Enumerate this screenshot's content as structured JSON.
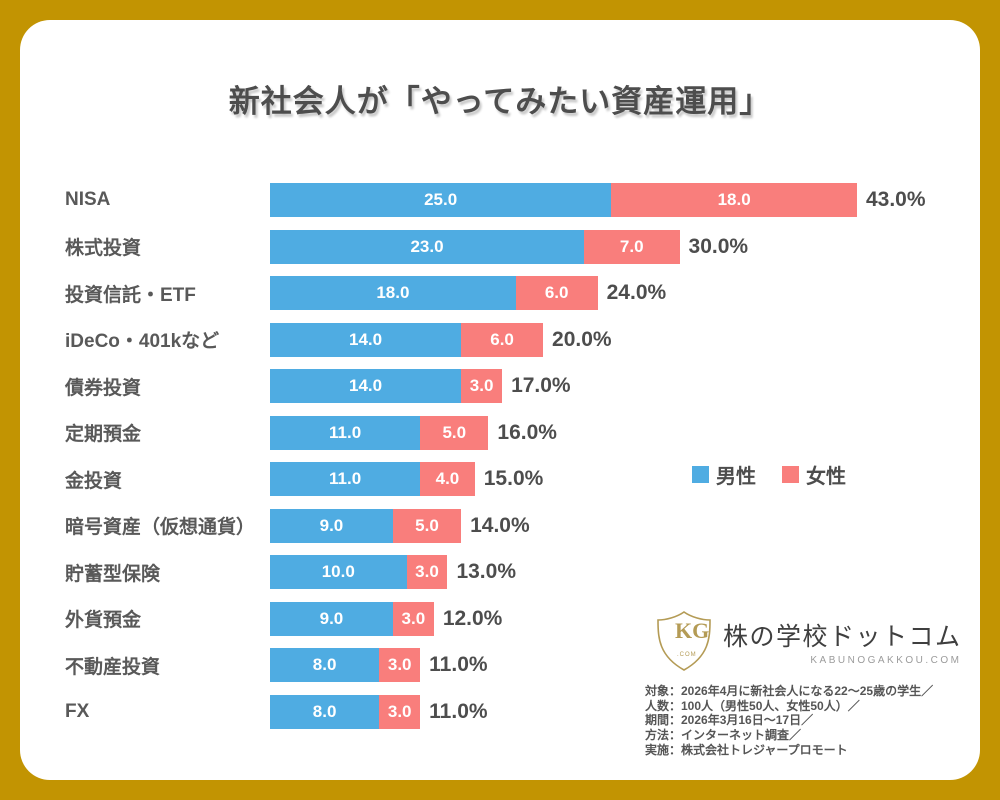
{
  "title": "新社会人が「やってみたい資産運用」",
  "colors": {
    "border_gold": "#C29402",
    "male_blue": "#4FACE2",
    "female_red": "#F97E7C",
    "text_dark": "#4D4D4D",
    "label_gray": "#595959"
  },
  "chart_data": {
    "type": "bar",
    "orientation": "horizontal",
    "stacked": true,
    "title": "新社会人が「やってみたい資産運用」",
    "categories": [
      "NISA",
      "株式投資",
      "投資信託・ETF",
      "iDeCo・401kなど",
      "債券投資",
      "定期預金",
      "金投資",
      "暗号資産（仮想通貨）",
      "貯蓄型保険",
      "外貨預金",
      "不動産投資",
      "FX"
    ],
    "series": [
      {
        "name": "男性",
        "color": "#4FACE2",
        "values": [
          25.0,
          23.0,
          18.0,
          14.0,
          14.0,
          11.0,
          11.0,
          9.0,
          10.0,
          9.0,
          8.0,
          8.0
        ]
      },
      {
        "name": "女性",
        "color": "#F97E7C",
        "values": [
          18.0,
          7.0,
          6.0,
          6.0,
          3.0,
          5.0,
          4.0,
          5.0,
          3.0,
          3.0,
          3.0,
          3.0
        ]
      }
    ],
    "totals": [
      43.0,
      30.0,
      24.0,
      20.0,
      17.0,
      16.0,
      15.0,
      14.0,
      13.0,
      12.0,
      11.0,
      11.0
    ],
    "xlim": [
      0,
      43
    ],
    "legend_position": "middle-right",
    "grid": false,
    "value_label_format": "#.0",
    "total_label_format": "#.0%"
  },
  "legend": {
    "items": [
      {
        "label": "男性",
        "color": "#4FACE2"
      },
      {
        "label": "女性",
        "color": "#F97E7C"
      }
    ]
  },
  "logo": {
    "monogram": "KG",
    "monogram_sub": ".COM",
    "name": "株の学校ドットコム",
    "domain": "KABUNOGAKKOU.COM"
  },
  "footnote": {
    "lines": [
      "対象：2026年4月に新社会人になる22～25歳の学生／",
      "人数：100人（男性50人、女性50人）／",
      "期間：2026年3月16日～17日／",
      "方法：インターネット調査／",
      "実施：株式会社トレジャープロモート"
    ]
  }
}
